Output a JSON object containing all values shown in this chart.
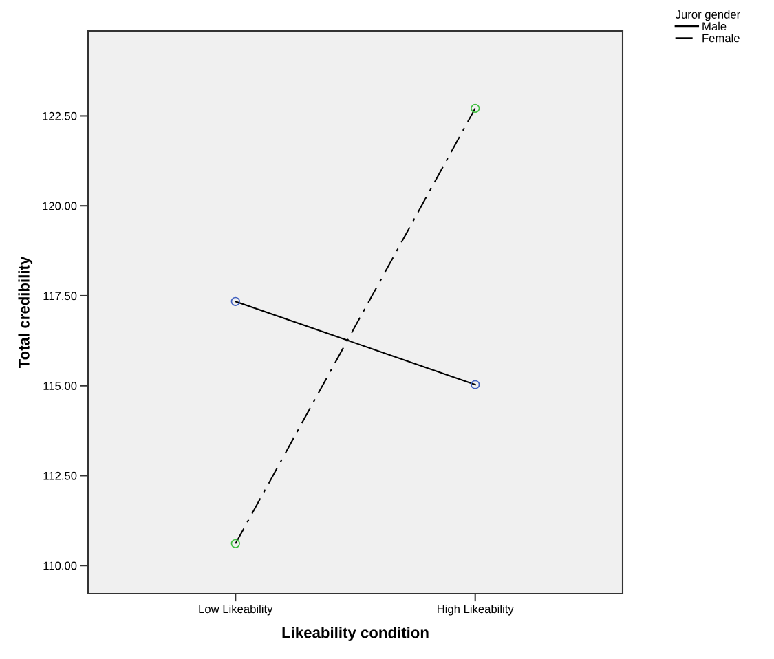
{
  "chart_data": {
    "type": "line",
    "xlabel": "Likeability condition",
    "ylabel": "Total credibility",
    "legend_title": "Juror gender",
    "categories": [
      "Low Likeability",
      "High Likeability"
    ],
    "series": [
      {
        "name": "Male",
        "color": "#000000",
        "colors": [
          "#3f5fbf",
          "#3f5fbf"
        ],
        "line_style": "solid",
        "values": [
          117.34,
          115.03
        ]
      },
      {
        "name": "Female",
        "color": "#000000",
        "colors": [
          "#3fbf3f",
          "#3fbf3f"
        ],
        "line_style": "dashdot",
        "values": [
          110.61,
          122.71
        ]
      }
    ],
    "ylim": [
      109.22,
      124.86
    ],
    "yticks": [
      {
        "value": 110,
        "label": "110.00"
      },
      {
        "value": 112.5,
        "label": "112.50"
      },
      {
        "value": 115,
        "label": "115.00"
      },
      {
        "value": 117.5,
        "label": "117.50"
      },
      {
        "value": 120,
        "label": "120.00"
      },
      {
        "value": 122.5,
        "label": "122.50"
      }
    ],
    "marker": "circle",
    "grid": false,
    "legend": "top right"
  }
}
